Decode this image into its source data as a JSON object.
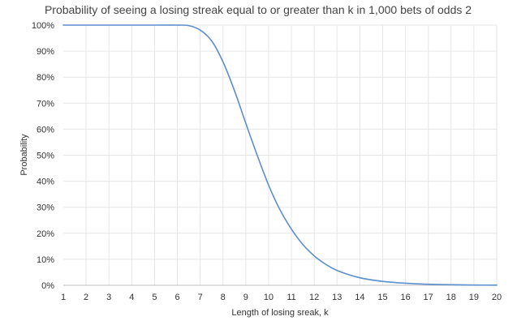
{
  "chart_data": {
    "type": "line",
    "title": "Probability of seeing a losing streak equal to or greater than k in 1,000 bets of odds 2",
    "xlabel": "Length of losing sreak, k",
    "ylabel": "Probability",
    "xlim": [
      1,
      20
    ],
    "ylim": [
      0,
      1
    ],
    "x_ticks": [
      "1",
      "2",
      "3",
      "4",
      "5",
      "6",
      "7",
      "8",
      "9",
      "10",
      "11",
      "12",
      "13",
      "14",
      "15",
      "16",
      "17",
      "18",
      "19",
      "20"
    ],
    "y_ticks": [
      "0%",
      "10%",
      "20%",
      "30%",
      "40%",
      "50%",
      "60%",
      "70%",
      "80%",
      "90%",
      "100%"
    ],
    "grid": true,
    "legend": "none",
    "series": [
      {
        "color": "#5b8fcd",
        "x": [
          1,
          2,
          3,
          4,
          5,
          6,
          6.5,
          7,
          7.5,
          8,
          8.5,
          9,
          9.5,
          10,
          10.5,
          11,
          11.5,
          12,
          12.5,
          13,
          14,
          15,
          16,
          17,
          18,
          19,
          20
        ],
        "values": [
          1.0,
          1.0,
          1.0,
          1.0,
          1.0,
          1.0,
          0.998,
          0.981,
          0.94,
          0.859,
          0.749,
          0.623,
          0.5,
          0.385,
          0.29,
          0.216,
          0.157,
          0.113,
          0.081,
          0.057,
          0.029,
          0.015,
          0.008,
          0.004,
          0.002,
          0.001,
          0.0005
        ]
      }
    ]
  }
}
